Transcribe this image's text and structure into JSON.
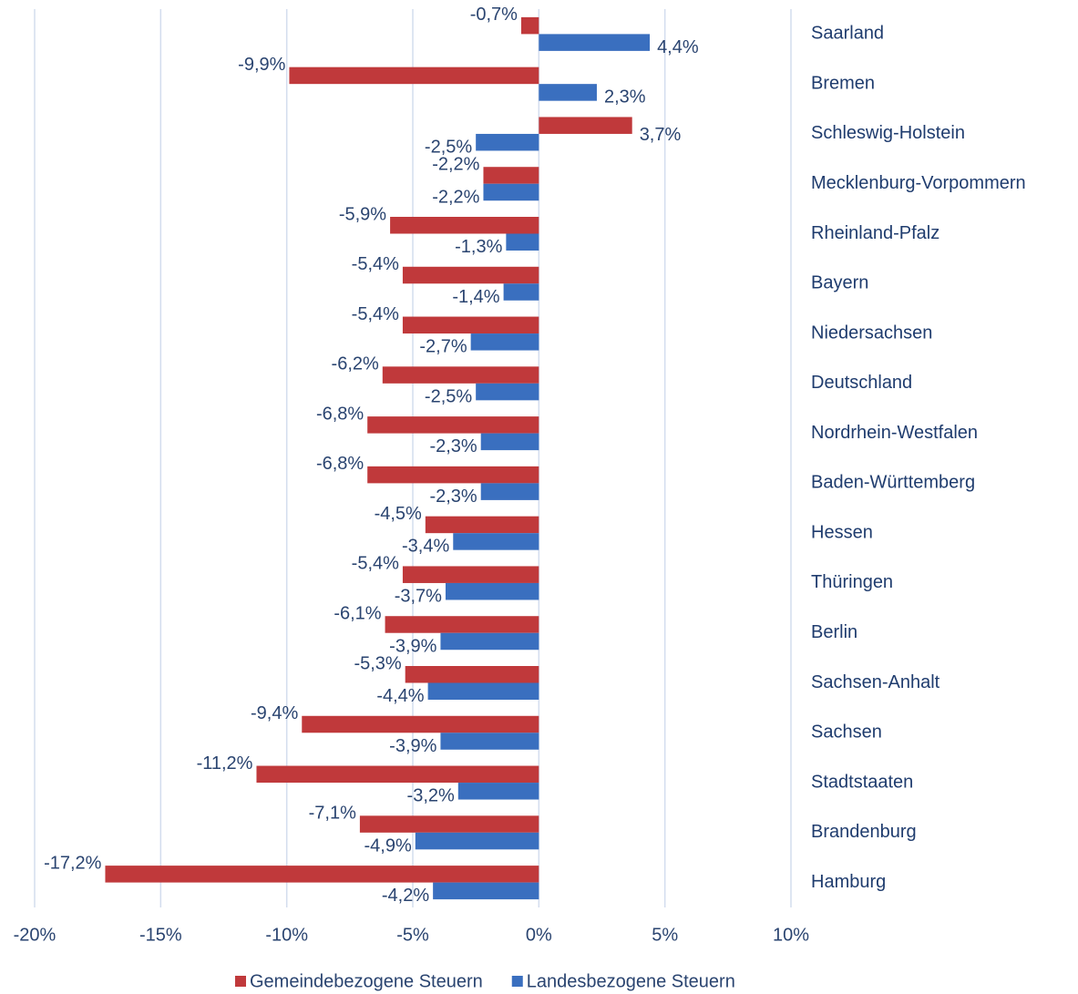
{
  "chart_data": {
    "type": "barh",
    "categories": [
      "Saarland",
      "Bremen",
      "Schleswig-Holstein",
      "Mecklenburg-Vorpommern",
      "Rheinland-Pfalz",
      "Bayern",
      "Niedersachsen",
      "Deutschland",
      "Nordrhein-Westfalen",
      "Baden-Württemberg",
      "Hessen",
      "Thüringen",
      "Berlin",
      "Sachsen-Anhalt",
      "Sachsen",
      "Stadtstaaten",
      "Brandenburg",
      "Hamburg"
    ],
    "series": [
      {
        "name": "Gemeindebezogene Steuern",
        "color": "#c0393b",
        "values": [
          -0.7,
          -9.9,
          3.7,
          -2.2,
          -5.9,
          -5.4,
          -5.4,
          -6.2,
          -6.8,
          -6.8,
          -4.5,
          -5.4,
          -6.1,
          -5.3,
          -9.4,
          -11.2,
          -7.1,
          -17.2
        ],
        "value_labels": [
          "-0,7%",
          "-9,9%",
          "3,7%",
          "-2,2%",
          "-5,9%",
          "-5,4%",
          "-5,4%",
          "-6,2%",
          "-6,8%",
          "-6,8%",
          "-4,5%",
          "-5,4%",
          "-6,1%",
          "-5,3%",
          "-9,4%",
          "-11,2%",
          "-7,1%",
          "-17,2%"
        ]
      },
      {
        "name": "Landesbezogene Steuern",
        "color": "#3a6fbf",
        "values": [
          4.4,
          2.3,
          -2.5,
          -2.2,
          -1.3,
          -1.4,
          -2.7,
          -2.5,
          -2.3,
          -2.3,
          -3.4,
          -3.7,
          -3.9,
          -4.4,
          -3.9,
          -3.2,
          -4.9,
          -4.2
        ],
        "value_labels": [
          "4,4%",
          "2,3%",
          "-2,5%",
          "-2,2%",
          "-1,3%",
          "-1,4%",
          "-2,7%",
          "-2,5%",
          "-2,3%",
          "-2,3%",
          "-3,4%",
          "-3,7%",
          "-3,9%",
          "-4,4%",
          "-3,9%",
          "-3,2%",
          "-4,9%",
          "-4,2%"
        ]
      }
    ],
    "xlim": [
      -20,
      10
    ],
    "xticks": [
      {
        "value": -20,
        "label": "-20%"
      },
      {
        "value": -15,
        "label": "-15%"
      },
      {
        "value": -10,
        "label": "-10%"
      },
      {
        "value": -5,
        "label": "-5%"
      },
      {
        "value": 0,
        "label": "0%"
      },
      {
        "value": 5,
        "label": "5%"
      },
      {
        "value": 10,
        "label": "10%"
      }
    ],
    "grid": true,
    "legend": "bottom"
  }
}
